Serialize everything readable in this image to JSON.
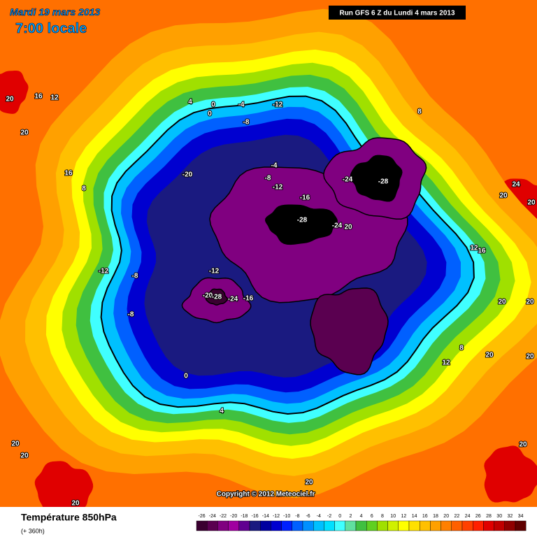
{
  "header": {
    "date": "Mardi 19 mars 2013",
    "time": "7:00 locale",
    "run": "Run GFS 6 Z du Lundi 4 mars 2013"
  },
  "map": {
    "copyright": "Copyright © 2012 Meteociel.fr",
    "contour_labels": [
      16,
      12,
      20,
      20,
      4,
      0,
      0,
      -4,
      -12,
      -8,
      8,
      -20,
      -4,
      -8,
      -12,
      -24,
      -28,
      -16,
      -28,
      -24,
      20,
      16,
      8,
      24,
      20,
      20,
      12,
      16,
      -12,
      -8,
      -12,
      -8,
      -20,
      -28,
      -24,
      -16,
      20,
      20,
      8,
      12,
      20,
      20,
      0,
      4,
      20,
      20,
      20,
      20,
      20
    ]
  },
  "footer": {
    "title": "Température 850hPa",
    "subtitle": "(+ 360h)"
  },
  "legend": {
    "ticks": [
      -26,
      -24,
      -22,
      -20,
      -18,
      -16,
      -14,
      -12,
      -10,
      -8,
      -6,
      -4,
      -2,
      0,
      2,
      4,
      6,
      8,
      10,
      12,
      14,
      16,
      18,
      20,
      22,
      24,
      26,
      28,
      30,
      32,
      34
    ],
    "colors": [
      "#3a0030",
      "#5a0050",
      "#800080",
      "#a000a0",
      "#600090",
      "#1a1a80",
      "#0000a0",
      "#0000d0",
      "#0020ff",
      "#0060ff",
      "#0090ff",
      "#00c0ff",
      "#00e0ff",
      "#40ffff",
      "#60e0a0",
      "#40c040",
      "#60d020",
      "#a0e000",
      "#d0f000",
      "#ffff00",
      "#ffe000",
      "#ffc000",
      "#ffa000",
      "#ff8000",
      "#ff6000",
      "#ff4000",
      "#ff2000",
      "#e00000",
      "#c00000",
      "#900000",
      "#600000"
    ]
  }
}
